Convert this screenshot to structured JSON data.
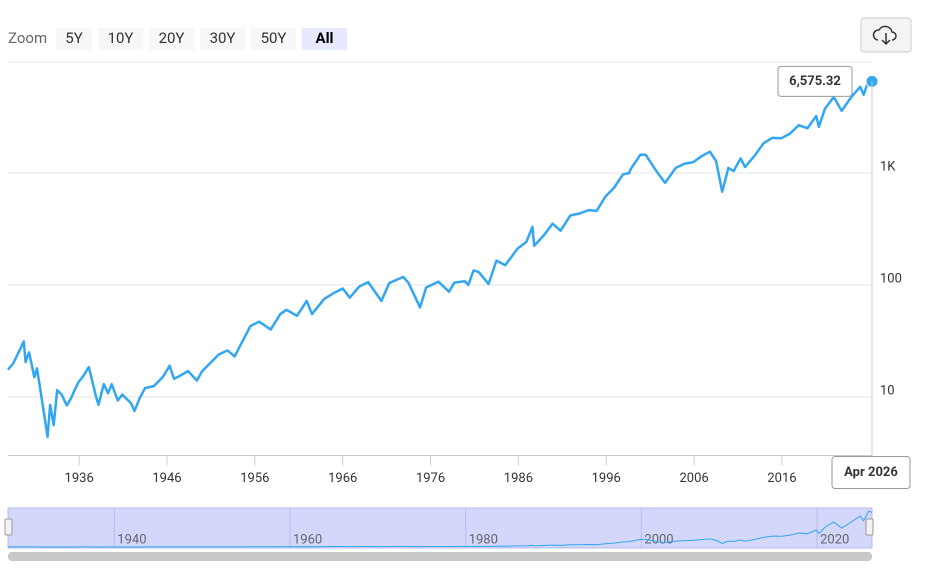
{
  "range_selector": {
    "label": "Zoom",
    "buttons": [
      "5Y",
      "10Y",
      "20Y",
      "30Y",
      "50Y",
      "All"
    ],
    "selected": "All"
  },
  "chart_data": {
    "type": "line",
    "log_scale": true,
    "x": [
      1927.9,
      1928.5,
      1929.0,
      1929.7,
      1929.9,
      1930.3,
      1930.9,
      1931.2,
      1931.9,
      1932.4,
      1932.7,
      1933.1,
      1933.5,
      1934.0,
      1934.6,
      1935.0,
      1935.9,
      1936.5,
      1937.1,
      1937.9,
      1938.2,
      1938.8,
      1939.3,
      1939.7,
      1940.4,
      1940.9,
      1941.9,
      1942.3,
      1942.9,
      1943.5,
      1944.5,
      1945.5,
      1946.3,
      1946.8,
      1947.5,
      1948.4,
      1949.4,
      1950.0,
      1950.9,
      1951.9,
      1952.9,
      1953.7,
      1954.9,
      1955.5,
      1956.5,
      1957.8,
      1958.9,
      1959.6,
      1960.8,
      1961.9,
      1962.5,
      1963.9,
      1964.9,
      1966.0,
      1966.8,
      1967.9,
      1968.9,
      1970.4,
      1971.3,
      1972.9,
      1973.5,
      1974.8,
      1975.5,
      1976.9,
      1978.1,
      1978.7,
      1979.9,
      1980.3,
      1980.9,
      1981.5,
      1982.6,
      1983.5,
      1984.5,
      1985.9,
      1986.9,
      1987.6,
      1987.8,
      1988.9,
      1989.9,
      1990.8,
      1991.9,
      1993.0,
      1994.0,
      1994.9,
      1995.9,
      1996.9,
      1997.9,
      1998.6,
      1998.8,
      1999.9,
      2000.5,
      2001.7,
      2002.7,
      2003.9,
      2004.9,
      2005.9,
      2006.9,
      2007.8,
      2008.5,
      2009.2,
      2009.9,
      2010.5,
      2011.3,
      2011.8,
      2012.9,
      2013.9,
      2014.9,
      2015.9,
      2016.9,
      2017.9,
      2018.9,
      2019.9,
      2020.2,
      2020.9,
      2021.9,
      2022.8,
      2023.9,
      2024.9,
      2025.3,
      2025.9,
      2026.25
    ],
    "series": [
      {
        "color": "#33a6f2",
        "values": [
          17.5,
          20,
          24,
          31.3,
          20.5,
          25,
          15,
          18,
          8,
          4.4,
          8.5,
          5.6,
          11.5,
          10.5,
          8.4,
          9.5,
          13.5,
          15.5,
          18.5,
          10.2,
          8.5,
          13,
          10.8,
          13,
          9.3,
          10.5,
          8.8,
          7.5,
          9.8,
          12,
          12.5,
          15,
          19,
          14.5,
          15.5,
          17,
          14,
          17,
          20,
          24,
          26,
          23,
          35,
          43,
          47,
          40,
          55,
          60,
          53,
          72,
          55,
          75,
          84,
          93,
          77,
          97,
          106,
          72,
          104,
          118,
          104,
          63,
          95,
          107,
          87,
          105,
          108,
          100,
          135,
          130,
          102,
          165,
          150,
          211,
          242,
          330,
          224,
          278,
          353,
          305,
          417,
          436,
          466,
          459,
          615,
          740,
          970,
          1000,
          1090,
          1460,
          1450,
          1040,
          815,
          1110,
          1210,
          1250,
          1420,
          1550,
          1280,
          680,
          1110,
          1040,
          1350,
          1130,
          1430,
          1840,
          2060,
          2040,
          2240,
          2670,
          2510,
          3230,
          2580,
          3760,
          4770,
          3590,
          4770,
          5880,
          5000,
          6850,
          6575.32
        ]
      }
    ],
    "tooltip_label": "6,575.32",
    "tooltip_date": "Apr 2026",
    "xlim": [
      1927.9,
      2026.25
    ],
    "xticks": [
      1936,
      1946,
      1956,
      1966,
      1976,
      1986,
      1996,
      2006,
      2016
    ],
    "ylim": [
      3,
      10000
    ],
    "yticks": [
      10,
      100,
      {
        "value": 1000,
        "label": "1K"
      }
    ],
    "grid": true,
    "navigator_xticks": [
      1940,
      1960,
      1980,
      2000,
      2020
    ]
  }
}
